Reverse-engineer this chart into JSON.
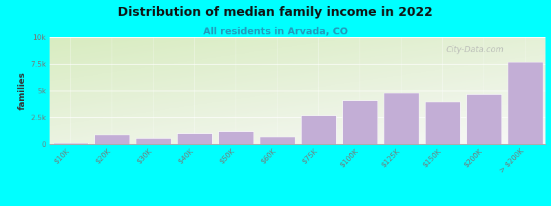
{
  "title": "Distribution of median family income in 2022",
  "subtitle": "All residents in Arvada, CO",
  "ylabel": "families",
  "categories": [
    "$10K",
    "$20K",
    "$30K",
    "$40K",
    "$50K",
    "$60K",
    "$75K",
    "$100K",
    "$125K",
    "$150K",
    "$200K",
    "> $200K"
  ],
  "values": [
    100,
    900,
    600,
    1000,
    1200,
    700,
    2700,
    4100,
    4800,
    4000,
    4700,
    7700
  ],
  "bar_color": "#C3AED6",
  "bar_edge_color": "#ffffff",
  "background_color": "#00FFFF",
  "plot_bg_color_topleft": "#d8ecc0",
  "plot_bg_color_bottomright": "#f5f5f5",
  "title_fontsize": 13,
  "subtitle_fontsize": 10,
  "ylabel_fontsize": 9,
  "tick_fontsize": 7.5,
  "watermark_text": "City-Data.com",
  "ylim": [
    0,
    10000
  ],
  "yticks": [
    0,
    2500,
    5000,
    7500,
    10000
  ],
  "ytick_labels": [
    "0",
    "2.5k",
    "5k",
    "7.5k",
    "10k"
  ],
  "subtitle_color": "#2299bb",
  "grid_color": "#dddddd",
  "tick_color": "#777777"
}
